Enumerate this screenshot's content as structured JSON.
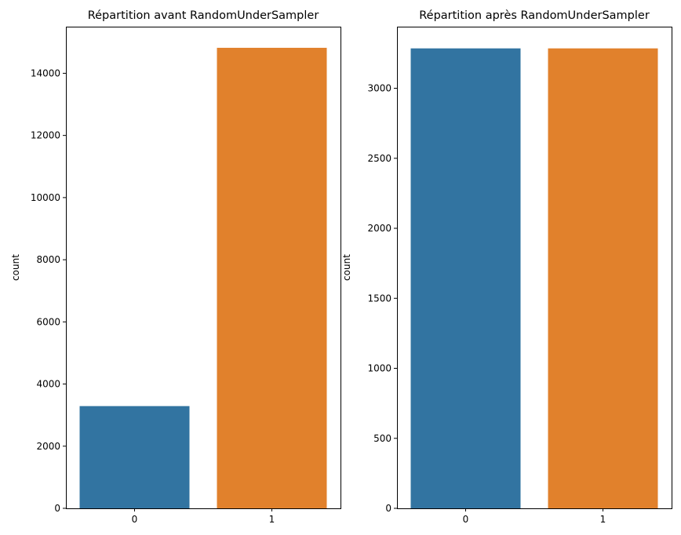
{
  "chart_data": [
    {
      "type": "bar",
      "title": "Répartition avant RandomUnderSampler",
      "xlabel": "",
      "ylabel": "count",
      "categories": [
        "0",
        "1"
      ],
      "values": [
        3290,
        14820
      ],
      "colors": [
        "#3274a1",
        "#e1812c"
      ],
      "ylim": [
        0,
        15500
      ],
      "yticks": [
        0,
        2000,
        4000,
        6000,
        8000,
        10000,
        12000,
        14000
      ],
      "grid": false
    },
    {
      "type": "bar",
      "title": "Répartition après RandomUnderSampler",
      "xlabel": "",
      "ylabel": "count",
      "categories": [
        "0",
        "1"
      ],
      "values": [
        3285,
        3285
      ],
      "colors": [
        "#3274a1",
        "#e1812c"
      ],
      "ylim": [
        0,
        3440
      ],
      "yticks": [
        0,
        500,
        1000,
        1500,
        2000,
        2500,
        3000
      ],
      "grid": false
    }
  ]
}
